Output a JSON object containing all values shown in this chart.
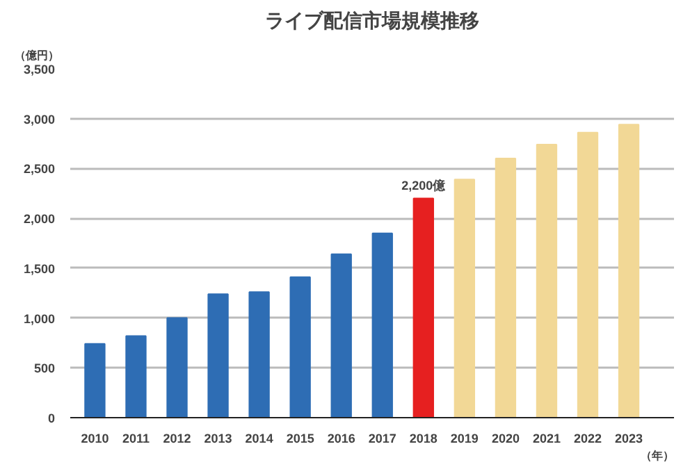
{
  "chart_data": {
    "type": "bar",
    "title": "ライブ配信市場規模推移",
    "ylabel": "（億円）",
    "xlabel": "（年）",
    "categories": [
      "2010",
      "2011",
      "2012",
      "2013",
      "2014",
      "2015",
      "2016",
      "2017",
      "2018",
      "2019",
      "2020",
      "2021",
      "2022",
      "2023"
    ],
    "values": [
      740,
      820,
      1000,
      1240,
      1260,
      1410,
      1640,
      1850,
      2200,
      2390,
      2600,
      2740,
      2860,
      2940
    ],
    "colors": [
      "#2e6db4",
      "#2e6db4",
      "#2e6db4",
      "#2e6db4",
      "#2e6db4",
      "#2e6db4",
      "#2e6db4",
      "#2e6db4",
      "#e62020",
      "#f2d896",
      "#f2d896",
      "#f2d896",
      "#f2d896",
      "#f2d896"
    ],
    "ylim": [
      0,
      3500
    ],
    "yticks": [
      0,
      500,
      {
        "value": 1000,
        "label": "1,000"
      },
      {
        "value": 1500,
        "label": "1,500"
      },
      {
        "value": 2000,
        "label": "2,000"
      },
      {
        "value": 2500,
        "label": "2,500"
      },
      {
        "value": 3000,
        "label": "3,000"
      },
      {
        "value": 3500,
        "label": "3,500"
      }
    ],
    "grid": "y",
    "annotations": [
      {
        "text": "2,200億",
        "x": "2018",
        "y": 2200
      }
    ]
  }
}
